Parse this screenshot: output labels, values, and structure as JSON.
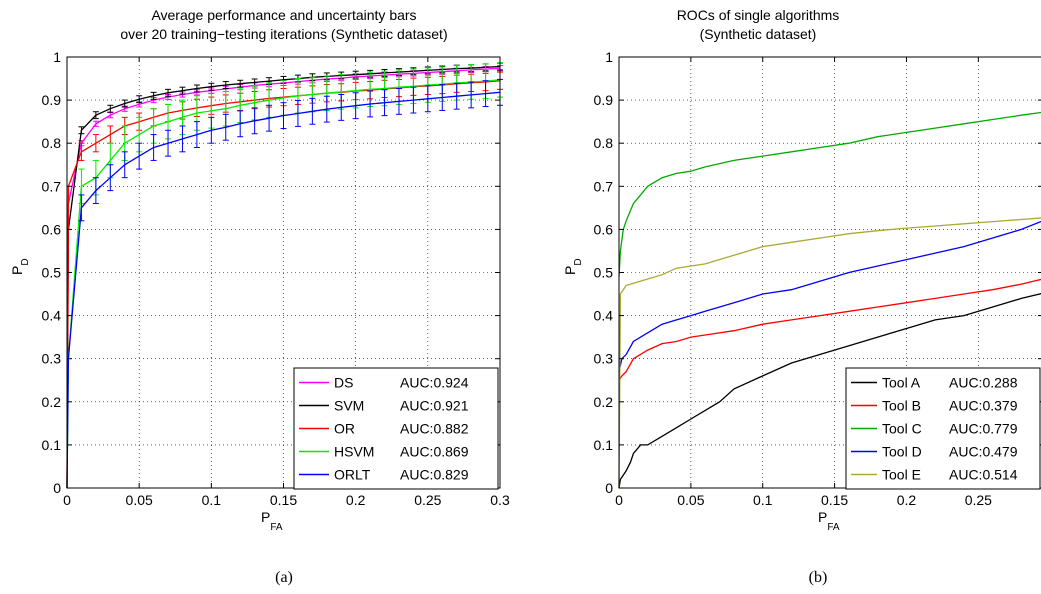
{
  "chart_data": [
    {
      "panel": "a",
      "type": "line",
      "title": [
        "Average performance and uncertainty bars",
        "over 20 training−testing iterations (Synthetic dataset)"
      ],
      "xlabel": "P",
      "xlabel_sub": "FA",
      "ylabel": "P",
      "ylabel_sub": "D",
      "xlim": [
        0,
        0.3
      ],
      "ylim": [
        0,
        1
      ],
      "xticks": [
        0,
        0.05,
        0.1,
        0.15,
        0.2,
        0.25,
        0.3
      ],
      "xtick_labels": [
        "0",
        "0.05",
        "0.1",
        "0.15",
        "0.2",
        "0.25",
        "0.3"
      ],
      "yticks": [
        0,
        0.1,
        0.2,
        0.3,
        0.4,
        0.5,
        0.6,
        0.7,
        0.8,
        0.9,
        1
      ],
      "ytick_labels": [
        "0",
        "0.1",
        "0.2",
        "0.3",
        "0.4",
        "0.5",
        "0.6",
        "0.7",
        "0.8",
        "0.9",
        "1"
      ],
      "grid": true,
      "error_bars": true,
      "legend_position": "bottom-right",
      "x": [
        0,
        0.001,
        0.01,
        0.02,
        0.03,
        0.04,
        0.05,
        0.06,
        0.07,
        0.08,
        0.09,
        0.1,
        0.11,
        0.12,
        0.13,
        0.14,
        0.15,
        0.16,
        0.17,
        0.18,
        0.19,
        0.2,
        0.21,
        0.22,
        0.23,
        0.24,
        0.25,
        0.26,
        0.27,
        0.28,
        0.29,
        0.3
      ],
      "series": [
        {
          "name": "DS",
          "auc": "AUC:0.924",
          "color": "#ff00ff",
          "err": 0.006,
          "values": [
            0.0,
            0.66,
            0.8,
            0.845,
            0.865,
            0.88,
            0.89,
            0.9,
            0.907,
            0.913,
            0.918,
            0.922,
            0.926,
            0.93,
            0.934,
            0.937,
            0.94,
            0.943,
            0.946,
            0.949,
            0.951,
            0.954,
            0.956,
            0.958,
            0.96,
            0.962,
            0.964,
            0.966,
            0.968,
            0.97,
            0.972,
            0.974
          ]
        },
        {
          "name": "SVM",
          "auc": "AUC:0.921",
          "color": "#000000",
          "err": 0.008,
          "values": [
            0.0,
            0.6,
            0.83,
            0.865,
            0.88,
            0.892,
            0.902,
            0.91,
            0.917,
            0.922,
            0.927,
            0.931,
            0.935,
            0.938,
            0.941,
            0.944,
            0.947,
            0.95,
            0.953,
            0.955,
            0.957,
            0.959,
            0.961,
            0.963,
            0.965,
            0.967,
            0.969,
            0.971,
            0.973,
            0.974,
            0.976,
            0.978
          ]
        },
        {
          "name": "OR",
          "auc": "AUC:0.882",
          "color": "#ff0000",
          "err": 0.02,
          "values": [
            0.0,
            0.7,
            0.78,
            0.8,
            0.82,
            0.84,
            0.85,
            0.86,
            0.87,
            0.876,
            0.882,
            0.887,
            0.892,
            0.896,
            0.9,
            0.904,
            0.907,
            0.91,
            0.913,
            0.916,
            0.918,
            0.921,
            0.923,
            0.926,
            0.928,
            0.931,
            0.933,
            0.935,
            0.938,
            0.94,
            0.942,
            0.945
          ]
        },
        {
          "name": "HSVM",
          "auc": "AUC:0.869",
          "color": "#00ee00",
          "err": 0.04,
          "values": [
            0.0,
            0.3,
            0.7,
            0.72,
            0.76,
            0.8,
            0.82,
            0.84,
            0.85,
            0.86,
            0.87,
            0.875,
            0.88,
            0.888,
            0.894,
            0.9,
            0.905,
            0.91,
            0.913,
            0.916,
            0.919,
            0.922,
            0.925,
            0.927,
            0.93,
            0.932,
            0.935,
            0.937,
            0.94,
            0.942,
            0.944,
            0.947
          ]
        },
        {
          "name": "ORLT",
          "auc": "AUC:0.829",
          "color": "#0000ff",
          "err": 0.03,
          "values": [
            0.0,
            0.3,
            0.65,
            0.69,
            0.72,
            0.75,
            0.77,
            0.79,
            0.8,
            0.81,
            0.82,
            0.83,
            0.837,
            0.845,
            0.852,
            0.858,
            0.864,
            0.869,
            0.874,
            0.879,
            0.883,
            0.887,
            0.891,
            0.894,
            0.897,
            0.9,
            0.903,
            0.906,
            0.909,
            0.912,
            0.915,
            0.918
          ]
        }
      ]
    },
    {
      "panel": "b",
      "type": "line",
      "title": [
        "ROCs of single algorithms",
        "(Synthetic dataset)"
      ],
      "xlabel": "P",
      "xlabel_sub": "FA",
      "ylabel": "P",
      "ylabel_sub": "D",
      "xlim": [
        0,
        0.295
      ],
      "ylim": [
        0,
        1
      ],
      "xticks": [
        0,
        0.05,
        0.1,
        0.15,
        0.2,
        0.25
      ],
      "xtick_labels": [
        "0",
        "0.05",
        "0.1",
        "0.15",
        "0.2",
        "0.25"
      ],
      "yticks": [
        0,
        0.1,
        0.2,
        0.3,
        0.4,
        0.5,
        0.6,
        0.7,
        0.8,
        0.9,
        1
      ],
      "ytick_labels": [
        "0",
        "0.1",
        "0.2",
        "0.3",
        "0.4",
        "0.5",
        "0.6",
        "0.7",
        "0.8",
        "0.9",
        "1"
      ],
      "grid": true,
      "legend_position": "bottom-right",
      "series": [
        {
          "name": "Tool A",
          "auc": "AUC:0.288",
          "color": "#000000",
          "x": [
            0,
            0.001,
            0.003,
            0.005,
            0.008,
            0.01,
            0.015,
            0.02,
            0.03,
            0.04,
            0.05,
            0.06,
            0.07,
            0.08,
            0.1,
            0.12,
            0.14,
            0.16,
            0.18,
            0.2,
            0.22,
            0.24,
            0.26,
            0.28,
            0.295
          ],
          "values": [
            0.0,
            0.02,
            0.03,
            0.04,
            0.06,
            0.08,
            0.1,
            0.1,
            0.12,
            0.14,
            0.16,
            0.18,
            0.2,
            0.23,
            0.26,
            0.29,
            0.31,
            0.33,
            0.35,
            0.37,
            0.39,
            0.4,
            0.42,
            0.44,
            0.452
          ]
        },
        {
          "name": "Tool B",
          "auc": "AUC:0.379",
          "color": "#ff0000",
          "x": [
            0,
            0.002,
            0.005,
            0.01,
            0.02,
            0.03,
            0.04,
            0.05,
            0.06,
            0.08,
            0.1,
            0.12,
            0.14,
            0.16,
            0.18,
            0.2,
            0.22,
            0.24,
            0.26,
            0.28,
            0.295
          ],
          "values": [
            0.25,
            0.26,
            0.27,
            0.3,
            0.32,
            0.335,
            0.34,
            0.35,
            0.355,
            0.365,
            0.38,
            0.39,
            0.4,
            0.41,
            0.42,
            0.43,
            0.44,
            0.45,
            0.46,
            0.473,
            0.485
          ]
        },
        {
          "name": "Tool C",
          "auc": "AUC:0.779",
          "color": "#00aa00",
          "x": [
            0,
            0.001,
            0.003,
            0.005,
            0.01,
            0.015,
            0.02,
            0.03,
            0.04,
            0.05,
            0.06,
            0.08,
            0.1,
            0.12,
            0.14,
            0.16,
            0.18,
            0.2,
            0.22,
            0.24,
            0.26,
            0.28,
            0.295
          ],
          "values": [
            0.49,
            0.55,
            0.6,
            0.62,
            0.66,
            0.68,
            0.7,
            0.72,
            0.73,
            0.735,
            0.745,
            0.76,
            0.77,
            0.78,
            0.79,
            0.8,
            0.815,
            0.825,
            0.835,
            0.845,
            0.855,
            0.865,
            0.872
          ]
        },
        {
          "name": "Tool D",
          "auc": "AUC:0.479",
          "color": "#0000ff",
          "x": [
            0,
            0.002,
            0.005,
            0.01,
            0.02,
            0.03,
            0.04,
            0.05,
            0.06,
            0.08,
            0.1,
            0.12,
            0.14,
            0.16,
            0.18,
            0.2,
            0.22,
            0.24,
            0.26,
            0.28,
            0.295
          ],
          "values": [
            0.27,
            0.3,
            0.31,
            0.34,
            0.36,
            0.38,
            0.39,
            0.4,
            0.41,
            0.43,
            0.45,
            0.46,
            0.48,
            0.5,
            0.515,
            0.53,
            0.545,
            0.56,
            0.58,
            0.6,
            0.62
          ]
        },
        {
          "name": "Tool E",
          "auc": "AUC:0.514",
          "color": "#aaaa33",
          "x": [
            0,
            0.001,
            0.003,
            0.005,
            0.01,
            0.02,
            0.03,
            0.04,
            0.05,
            0.06,
            0.08,
            0.1,
            0.12,
            0.14,
            0.16,
            0.18,
            0.2,
            0.22,
            0.24,
            0.26,
            0.28,
            0.295
          ],
          "values": [
            0.0,
            0.45,
            0.46,
            0.47,
            0.475,
            0.485,
            0.495,
            0.51,
            0.515,
            0.52,
            0.54,
            0.56,
            0.57,
            0.58,
            0.59,
            0.597,
            0.603,
            0.608,
            0.613,
            0.618,
            0.623,
            0.627
          ]
        }
      ]
    }
  ],
  "captions": [
    "(a)",
    "(b)"
  ]
}
